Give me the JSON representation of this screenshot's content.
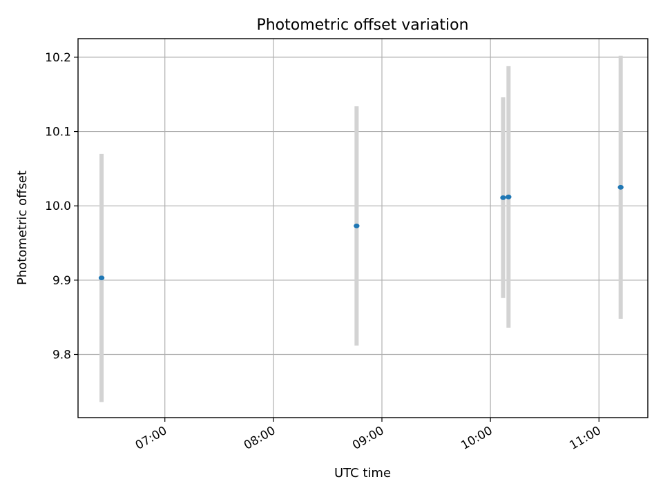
{
  "chart_data": {
    "type": "scatter",
    "title": "Photometric offset variation",
    "xlabel": "UTC time",
    "ylabel": "Photometric offset",
    "x_tick_labels": [
      "07:00",
      "08:00",
      "09:00",
      "10:00",
      "11:00"
    ],
    "y_tick_labels": [
      "9.8",
      "9.9",
      "10.0",
      "10.1",
      "10.2"
    ],
    "xlim": [
      "06:12",
      "11:27"
    ],
    "ylim": [
      9.715,
      10.225
    ],
    "grid": true,
    "series": [
      {
        "color": "#1f77b4",
        "errorbar_color": "#d3d3d3",
        "points": [
          {
            "x": "06:25",
            "y": 9.903,
            "yerr": 0.167
          },
          {
            "x": "08:46",
            "y": 9.973,
            "yerr": 0.161
          },
          {
            "x": "10:07",
            "y": 10.011,
            "yerr": 0.135
          },
          {
            "x": "10:10",
            "y": 10.012,
            "yerr": 0.176
          },
          {
            "x": "11:12",
            "y": 10.025,
            "yerr": 0.177
          }
        ]
      }
    ]
  }
}
